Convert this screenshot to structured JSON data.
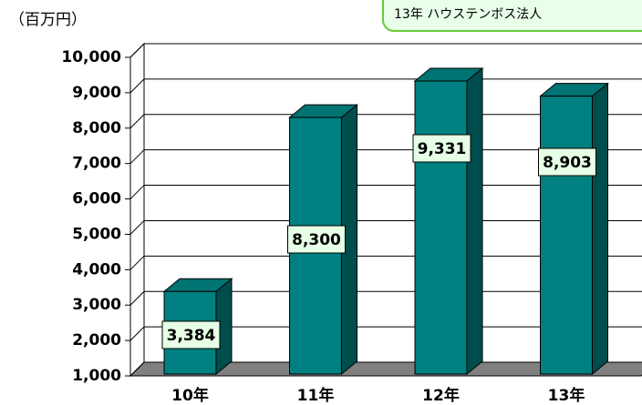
{
  "chart_data": {
    "type": "bar3d",
    "y_axis_label": "（百万円）",
    "callout": "13年 ハウステンボス法人",
    "categories": [
      "10年",
      "11年",
      "12年",
      "13年"
    ],
    "values": [
      3384,
      8300,
      9331,
      8903
    ],
    "value_labels": [
      "3,384",
      "8,300",
      "9,331",
      "8,903"
    ],
    "color": "#008080",
    "ylim": [
      1000,
      10000
    ],
    "yticks": [
      {
        "value": 1000,
        "label": "1,000"
      },
      {
        "value": 2000,
        "label": "2,000"
      },
      {
        "value": 3000,
        "label": "3,000"
      },
      {
        "value": 4000,
        "label": "4,000"
      },
      {
        "value": 5000,
        "label": "5,000"
      },
      {
        "value": 6000,
        "label": "6,000"
      },
      {
        "value": 7000,
        "label": "7,000"
      },
      {
        "value": 8000,
        "label": "8,000"
      },
      {
        "value": 9000,
        "label": "9,000"
      },
      {
        "value": 10000,
        "label": "10,000"
      }
    ],
    "grid": true
  }
}
